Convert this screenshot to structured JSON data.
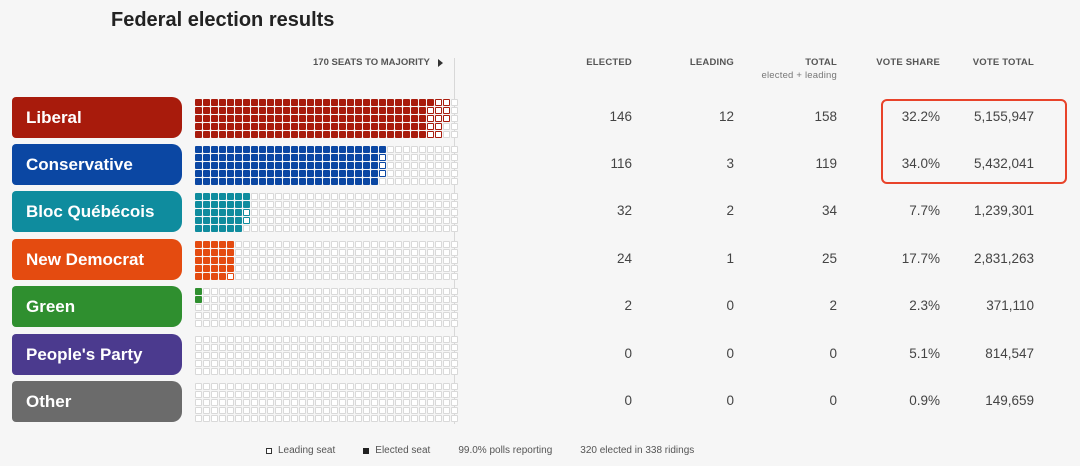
{
  "title": "Federal election results",
  "majority_label": "170 SEATS TO MAJORITY",
  "columns": {
    "elected": "ELECTED",
    "leading": "LEADING",
    "total": "TOTAL",
    "total_sub": "elected + leading",
    "vote_share": "VOTE SHARE",
    "vote_total": "VOTE TOTAL"
  },
  "parties": [
    {
      "name": "Liberal",
      "color": "#a81b0c",
      "elected": 146,
      "leading": 12,
      "total": 158,
      "vote_share": "32.2%",
      "vote_total": "5,155,947"
    },
    {
      "name": "Conservative",
      "color": "#0b47a3",
      "elected": 116,
      "leading": 3,
      "total": 119,
      "vote_share": "34.0%",
      "vote_total": "5,432,041"
    },
    {
      "name": "Bloc Québécois",
      "color": "#0f8c9e",
      "elected": 32,
      "leading": 2,
      "total": 34,
      "vote_share": "7.7%",
      "vote_total": "1,239,301"
    },
    {
      "name": "New Democrat",
      "color": "#e44b10",
      "elected": 24,
      "leading": 1,
      "total": 25,
      "vote_share": "17.7%",
      "vote_total": "2,831,263"
    },
    {
      "name": "Green",
      "color": "#2f8f2f",
      "elected": 2,
      "leading": 0,
      "total": 2,
      "vote_share": "2.3%",
      "vote_total": "371,110"
    },
    {
      "name": "People's Party",
      "color": "#4b3a8e",
      "elected": 0,
      "leading": 0,
      "total": 0,
      "vote_share": "5.1%",
      "vote_total": "814,547"
    },
    {
      "name": "Other",
      "color": "#6b6b6b",
      "elected": 0,
      "leading": 0,
      "total": 0,
      "vote_share": "0.9%",
      "vote_total": "149,659"
    }
  ],
  "seats_per_row": 338,
  "footer": {
    "leading_seat": "Leading seat",
    "elected_seat": "Elected seat",
    "polls": "99.0% polls reporting",
    "elected_summary": "320 elected in 338 ridings"
  }
}
